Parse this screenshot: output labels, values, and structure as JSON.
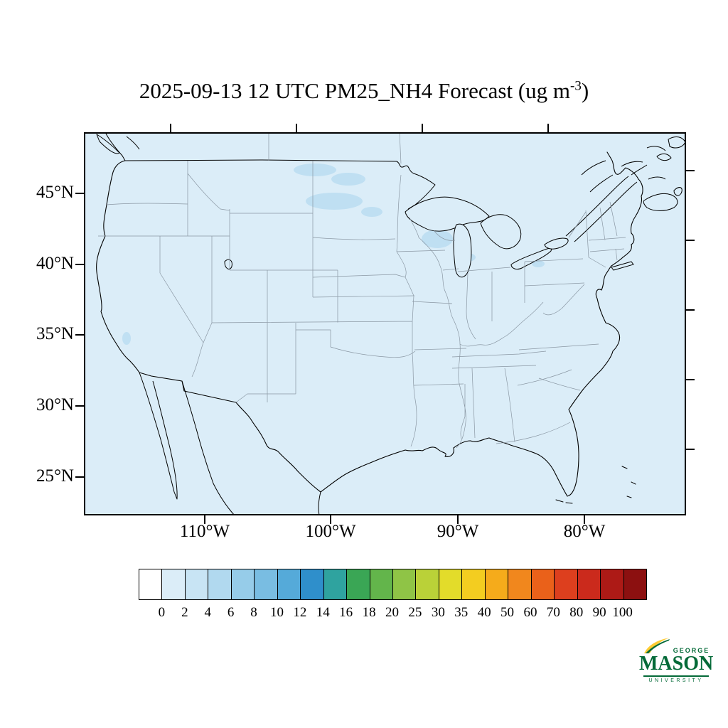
{
  "title": {
    "prefix": "2025-09-13 12 UTC PM25_NH4 Forecast (ug m",
    "exponent": "-3",
    "suffix": ")"
  },
  "axes": {
    "lat_labels": [
      "45°N",
      "40°N",
      "35°N",
      "30°N",
      "25°N"
    ],
    "lon_labels": [
      "110°W",
      "100°W",
      "90°W",
      "80°W"
    ]
  },
  "colorbar": {
    "labels": [
      "0",
      "2",
      "4",
      "6",
      "8",
      "10",
      "12",
      "14",
      "16",
      "18",
      "20",
      "25",
      "30",
      "35",
      "40",
      "50",
      "60",
      "70",
      "80",
      "90",
      "100"
    ],
    "colors": [
      "#ffffff",
      "#dbedf8",
      "#c8e4f4",
      "#b1d9ef",
      "#96cce9",
      "#79bde2",
      "#55aad9",
      "#2f8fcb",
      "#2fa39f",
      "#3aa655",
      "#63b54b",
      "#8fc446",
      "#bad138",
      "#e3dc2a",
      "#f3cd20",
      "#f5ab1b",
      "#f1871d",
      "#ea611a",
      "#dd3f1e",
      "#cb2a1c",
      "#ad1a16",
      "#8c1010"
    ],
    "units": "ug m-3"
  },
  "map": {
    "fill_color": "#dbedf8",
    "patch_color": "#bcdef2",
    "coast_color": "#000000",
    "state_line_color": "#8a97a3",
    "frame_color": "#000000"
  },
  "logo": {
    "line1": "GEORGE",
    "line2": "MASON",
    "line3": "UNIVERSITY",
    "green": "#046A38",
    "gold": "#FFCC33"
  }
}
